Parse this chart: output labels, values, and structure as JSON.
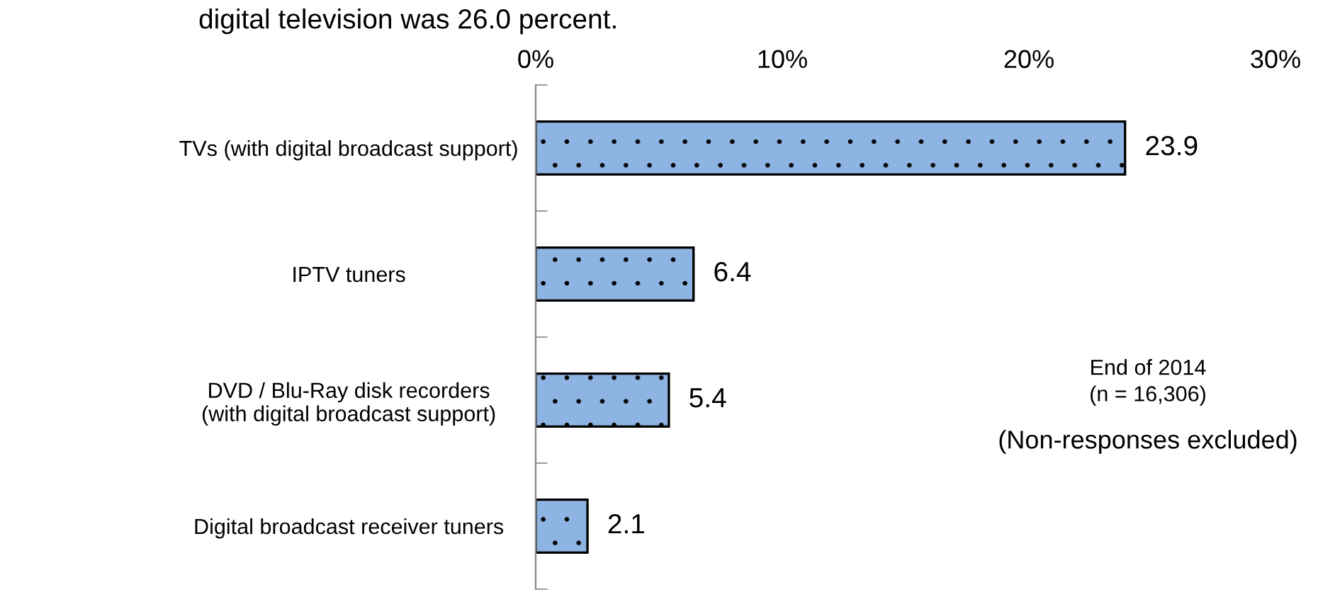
{
  "chart_data": {
    "type": "bar",
    "orientation": "horizontal",
    "categories": [
      "TVs (with digital broadcast support)",
      "IPTV tuners",
      "DVD / Blu-Ray disk recorders\n(with digital broadcast support)",
      "Digital broadcast receiver tuners"
    ],
    "values": [
      23.9,
      6.4,
      5.4,
      2.1
    ],
    "color": "#8eb4e3",
    "xlim": [
      0,
      30
    ],
    "xticks": [
      {
        "value": 0,
        "label": "0%"
      },
      {
        "value": 10,
        "label": "10%"
      },
      {
        "value": 20,
        "label": "20%"
      },
      {
        "value": 30,
        "label": "30%"
      }
    ],
    "data_labels": true,
    "grid": false,
    "annotations": [
      "digital television was 26.0 percent.",
      "End of 2014\n(n = 16,306)",
      "(Non-responses excluded)"
    ]
  }
}
